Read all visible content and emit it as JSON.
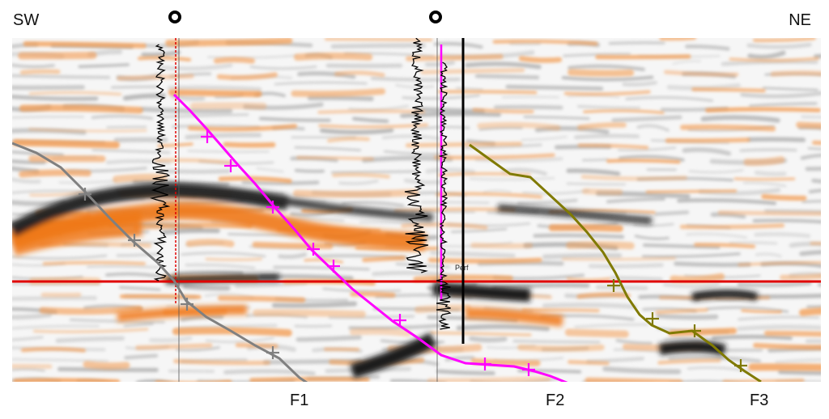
{
  "orientation": {
    "left": "SW",
    "right": "NE"
  },
  "faults": [
    {
      "label": "F1",
      "color": "#808080"
    },
    {
      "label": "F2",
      "color": "#ff00ff"
    },
    {
      "label": "F3",
      "color": "#807a00"
    }
  ],
  "horizon": {
    "color": "#e00000"
  },
  "well_annotation": "Perf",
  "colors": {
    "trough": "#1a1a1a",
    "peak": "#f07818",
    "background": "#ffffff",
    "well_log": "#000000",
    "well_trajectory_1": "#e00000",
    "well_trajectory_2": "#ff00ff"
  }
}
